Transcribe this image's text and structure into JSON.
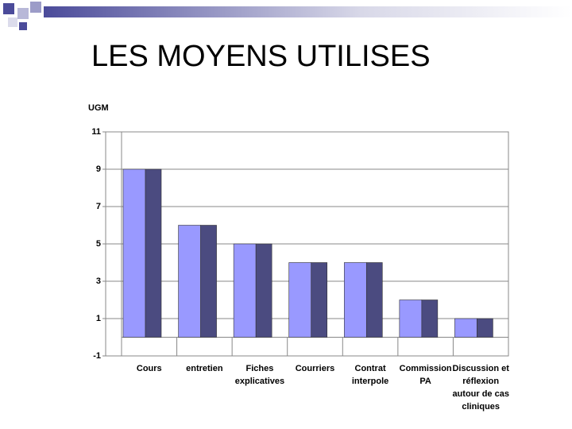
{
  "slide_title": "LES MOYENS UTILISES",
  "chart_data": {
    "type": "bar",
    "ylabel": "UGM",
    "categories": [
      "Cours",
      "entretien",
      "Fiches explicatives",
      "Courriers",
      "Contrat interpole",
      "Commission PA",
      "Discussion et réflexion autour de cas cliniques"
    ],
    "series": [
      {
        "color": "#9999ff",
        "values": [
          9,
          6,
          5,
          4,
          4,
          2,
          1
        ]
      },
      {
        "color": "#4b4b80",
        "values": [
          9,
          6,
          5,
          4,
          4,
          2,
          1
        ]
      }
    ],
    "ylim": [
      -1,
      11
    ],
    "yticks": [
      -1,
      1,
      3,
      5,
      7,
      9,
      11
    ],
    "grid": true
  }
}
